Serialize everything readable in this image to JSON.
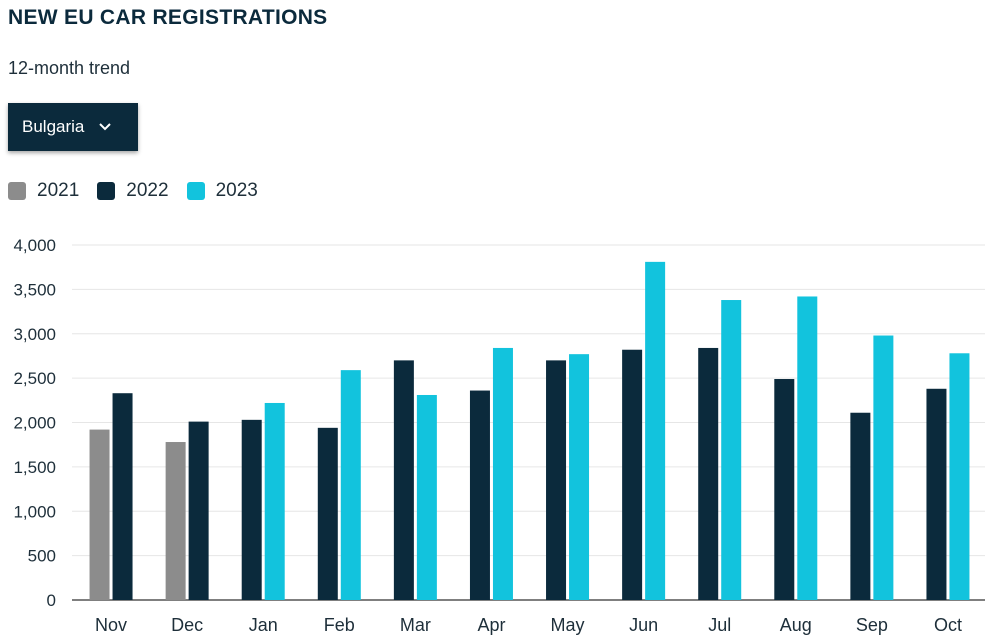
{
  "header": {
    "title": "NEW EU CAR REGISTRATIONS",
    "subtitle": "12-month trend"
  },
  "country_select": {
    "selected": "Bulgaria",
    "icon": "chevron-down-icon"
  },
  "colors": {
    "2021": "#8c8c8c",
    "2022": "#0b2a3c",
    "2023": "#12c3dd",
    "grid": "#e6e6e6",
    "axis_text": "#1e2f3a"
  },
  "chart_data": {
    "type": "bar",
    "title": "NEW EU CAR REGISTRATIONS",
    "subtitle": "12-month trend",
    "xlabel": "",
    "ylabel": "",
    "ylim": [
      0,
      4000
    ],
    "yticks": [
      "0",
      "500",
      "1,000",
      "1,500",
      "2,000",
      "2,500",
      "3,000",
      "3,500",
      "4,000"
    ],
    "grid": true,
    "legend": "top-left",
    "categories": [
      "Nov",
      "Dec",
      "Jan",
      "Feb",
      "Mar",
      "Apr",
      "May",
      "Jun",
      "Jul",
      "Aug",
      "Sep",
      "Oct"
    ],
    "series": [
      {
        "name": "2021",
        "values": [
          1920,
          1780,
          null,
          null,
          null,
          null,
          null,
          null,
          null,
          null,
          null,
          null
        ]
      },
      {
        "name": "2022",
        "values": [
          2330,
          2010,
          2030,
          1940,
          2700,
          2360,
          2700,
          2820,
          2840,
          2490,
          2110,
          2380
        ]
      },
      {
        "name": "2023",
        "values": [
          null,
          null,
          2220,
          2590,
          2310,
          2840,
          2770,
          3810,
          3380,
          3420,
          2980,
          2780
        ]
      }
    ]
  }
}
